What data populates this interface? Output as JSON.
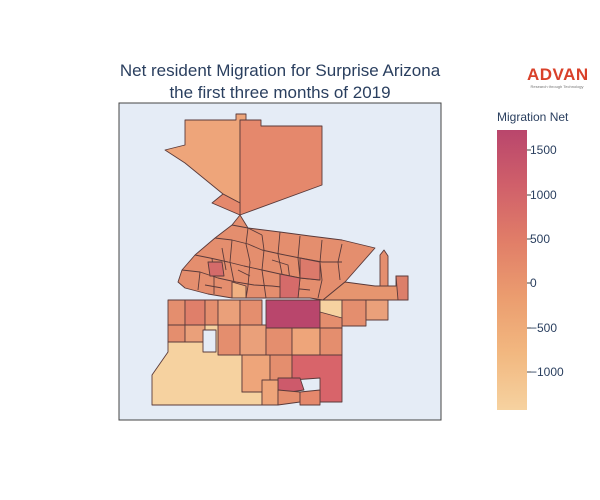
{
  "title_line1": "Net resident Migration for Surprise Arizona",
  "title_line2": "the first three months of 2019",
  "logo": {
    "name": "ADVAN",
    "tagline": "Research through Technology"
  },
  "colorbar": {
    "title": "Migration Net",
    "range": [
      -1400,
      1750
    ],
    "ticks": [
      {
        "value": 1500,
        "label": "1500"
      },
      {
        "value": 1000,
        "label": "1000"
      },
      {
        "value": 500,
        "label": "500"
      },
      {
        "value": 0,
        "label": "0"
      },
      {
        "value": -500,
        "label": "−500"
      },
      {
        "value": -1000,
        "label": "−1000"
      }
    ],
    "colors": [
      "#f6d2a0",
      "#f2b880",
      "#eb9d6f",
      "#e17e68",
      "#d0606a",
      "#b9466c"
    ]
  },
  "map_background": "#e5ecf6"
}
